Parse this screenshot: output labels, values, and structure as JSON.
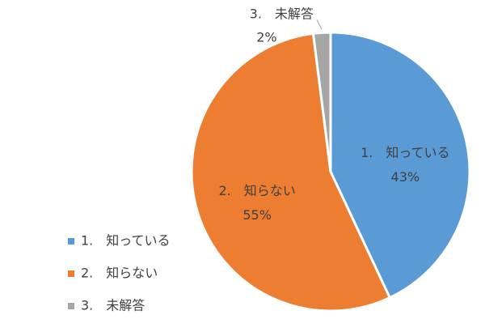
{
  "chart_data": {
    "type": "pie",
    "categories": [
      "1.　知っている",
      "2.　知らない",
      "3.　未解答"
    ],
    "values": [
      43,
      55,
      2
    ],
    "value_labels": [
      "43%",
      "55%",
      "2%"
    ],
    "colors": [
      "#5b9bd5",
      "#ed7d31",
      "#a5a5a5"
    ],
    "legend": "bottom-left"
  }
}
